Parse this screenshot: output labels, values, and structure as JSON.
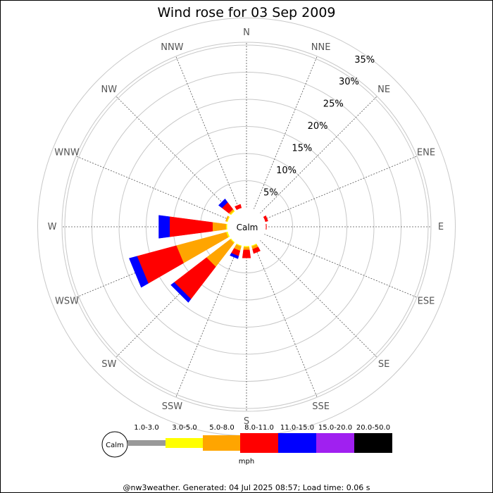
{
  "chart_data": {
    "type": "wind-rose",
    "title": "Wind rose for 03 Sep 2009",
    "directions": [
      "N",
      "NNE",
      "NE",
      "ENE",
      "E",
      "ESE",
      "SE",
      "SSE",
      "S",
      "SSW",
      "SW",
      "WSW",
      "W",
      "WNW",
      "NW",
      "NNW"
    ],
    "radial_max": 35,
    "radial_ticks": [
      5,
      10,
      15,
      20,
      25,
      30,
      35
    ],
    "radial_tick_labels": [
      "5%",
      "10%",
      "15%",
      "20%",
      "25%",
      "30%",
      "35%"
    ],
    "calm_label": "Calm",
    "speed_bins": [
      {
        "label": "1.0-3.0",
        "color": "#999999"
      },
      {
        "label": "3.0-5.0",
        "color": "#ffff00"
      },
      {
        "label": "5.0-8.0",
        "color": "#ffa500"
      },
      {
        "label": "8.0-11.0",
        "color": "#ff0000"
      },
      {
        "label": "11.0-15.0",
        "color": "#0000ff"
      },
      {
        "label": "15.0-20.0",
        "color": "#a020f0"
      },
      {
        "label": "20.0-50.0",
        "color": "#000000"
      }
    ],
    "speed_unit": "mph",
    "series": [
      {
        "name": "1.0-3.0",
        "values": [
          0,
          0,
          0,
          0,
          0,
          0,
          0,
          0,
          0,
          0,
          0,
          0,
          0,
          0,
          0,
          0
        ]
      },
      {
        "name": "3.0-5.0",
        "values": [
          0,
          0,
          0,
          0,
          0,
          0,
          0,
          0.3,
          0.3,
          0.3,
          0.3,
          0.4,
          0.3,
          0.3,
          0.3,
          0
        ]
      },
      {
        "name": "5.0-8.0",
        "values": [
          0,
          0,
          0,
          0,
          0,
          0,
          0,
          0.5,
          0.5,
          0.8,
          5.5,
          9.5,
          2.5,
          0.2,
          0.3,
          0
        ]
      },
      {
        "name": "8.0-11.0",
        "values": [
          0,
          0,
          0,
          0.6,
          0.2,
          0,
          0,
          0.8,
          1.5,
          1.0,
          7.5,
          7.5,
          8.0,
          0,
          1.6,
          0.8
        ]
      },
      {
        "name": "11.0-15.0",
        "values": [
          0,
          0,
          0,
          0,
          0,
          0,
          0,
          0,
          0,
          0.5,
          0.8,
          1.5,
          2.0,
          0,
          0.8,
          0
        ]
      },
      {
        "name": "15.0-20.0",
        "values": [
          0,
          0,
          0,
          0,
          0,
          0,
          0,
          0,
          0,
          0,
          0,
          0,
          0,
          0,
          0,
          0
        ]
      },
      {
        "name": "20.0-50.0",
        "values": [
          0,
          0,
          0,
          0,
          0,
          0,
          0,
          0,
          0,
          0,
          0,
          0,
          0,
          0,
          0,
          0
        ]
      }
    ]
  },
  "footer": "@nw3weather. Generated: 04 Jul 2025 08:57; Load time: 0.06 s"
}
